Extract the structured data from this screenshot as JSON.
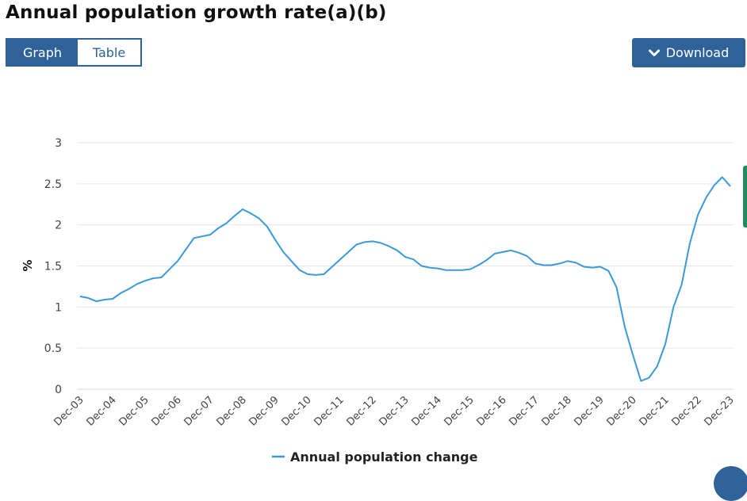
{
  "page": {
    "title": "Annual population growth rate(a)(b)",
    "view_toggle": [
      {
        "label": "Graph",
        "active": true
      },
      {
        "label": "Table",
        "active": false
      }
    ],
    "download_label": "Download",
    "download_icon": "chevron-down-icon"
  },
  "colors": {
    "brand": "#2e6298",
    "series": "#3a9ad9",
    "grid": "#e6e6e6",
    "axis": "#ccd6eb",
    "side_tab": "#1f8a5b"
  },
  "chart_data": {
    "type": "line",
    "title": "Annual population growth rate(a)(b)",
    "xlabel": "",
    "ylabel": "%",
    "ylim": [
      0,
      3
    ],
    "yticks": [
      "0",
      "0.5",
      "1",
      "1.5",
      "2",
      "2.5",
      "3"
    ],
    "ytick_values": [
      0,
      0.5,
      1,
      1.5,
      2,
      2.5,
      3
    ],
    "grid": true,
    "legend_position": "bottom-center",
    "x_tick_labels": [
      "Dec-03",
      "Dec-04",
      "Dec-05",
      "Dec-06",
      "Dec-07",
      "Dec-08",
      "Dec-09",
      "Dec-10",
      "Dec-11",
      "Dec-12",
      "Dec-13",
      "Dec-14",
      "Dec-15",
      "Dec-16",
      "Dec-17",
      "Dec-18",
      "Dec-19",
      "Dec-20",
      "Dec-21",
      "Dec-22",
      "Dec-23"
    ],
    "x_frequency": "quarterly",
    "series": [
      {
        "name": "Annual population change",
        "values": [
          1.13,
          1.11,
          1.07,
          1.09,
          1.1,
          1.17,
          1.22,
          1.28,
          1.32,
          1.35,
          1.36,
          1.46,
          1.56,
          1.7,
          1.84,
          1.86,
          1.88,
          1.96,
          2.02,
          2.11,
          2.19,
          2.14,
          2.08,
          1.98,
          1.82,
          1.67,
          1.56,
          1.45,
          1.4,
          1.39,
          1.4,
          1.49,
          1.58,
          1.67,
          1.76,
          1.79,
          1.8,
          1.78,
          1.74,
          1.69,
          1.61,
          1.58,
          1.5,
          1.48,
          1.47,
          1.45,
          1.45,
          1.45,
          1.46,
          1.51,
          1.57,
          1.65,
          1.67,
          1.69,
          1.66,
          1.62,
          1.53,
          1.51,
          1.51,
          1.53,
          1.56,
          1.54,
          1.49,
          1.48,
          1.49,
          1.44,
          1.24,
          0.76,
          0.42,
          0.1,
          0.14,
          0.28,
          0.55,
          1.0,
          1.27,
          1.77,
          2.12,
          2.33,
          2.48,
          2.58,
          2.47
        ]
      }
    ]
  }
}
